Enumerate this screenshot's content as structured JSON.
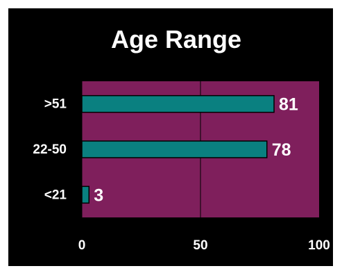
{
  "chart_data": {
    "type": "bar",
    "orientation": "horizontal",
    "title": "Age Range",
    "xlabel": "",
    "ylabel": "",
    "categories": [
      ">51",
      "22-50",
      "<21"
    ],
    "values": [
      81,
      78,
      3
    ],
    "xlim": [
      0,
      100
    ],
    "x_ticks": [
      0,
      50,
      100
    ],
    "grid": true,
    "legend": "none",
    "data_labels": true
  },
  "colors": {
    "background": "#000000",
    "plot_area": "#7f1f5c",
    "bar_fill": "#0a8080",
    "bar_stroke": "#000000",
    "text": "#ffffff",
    "gridline": "#000000"
  }
}
